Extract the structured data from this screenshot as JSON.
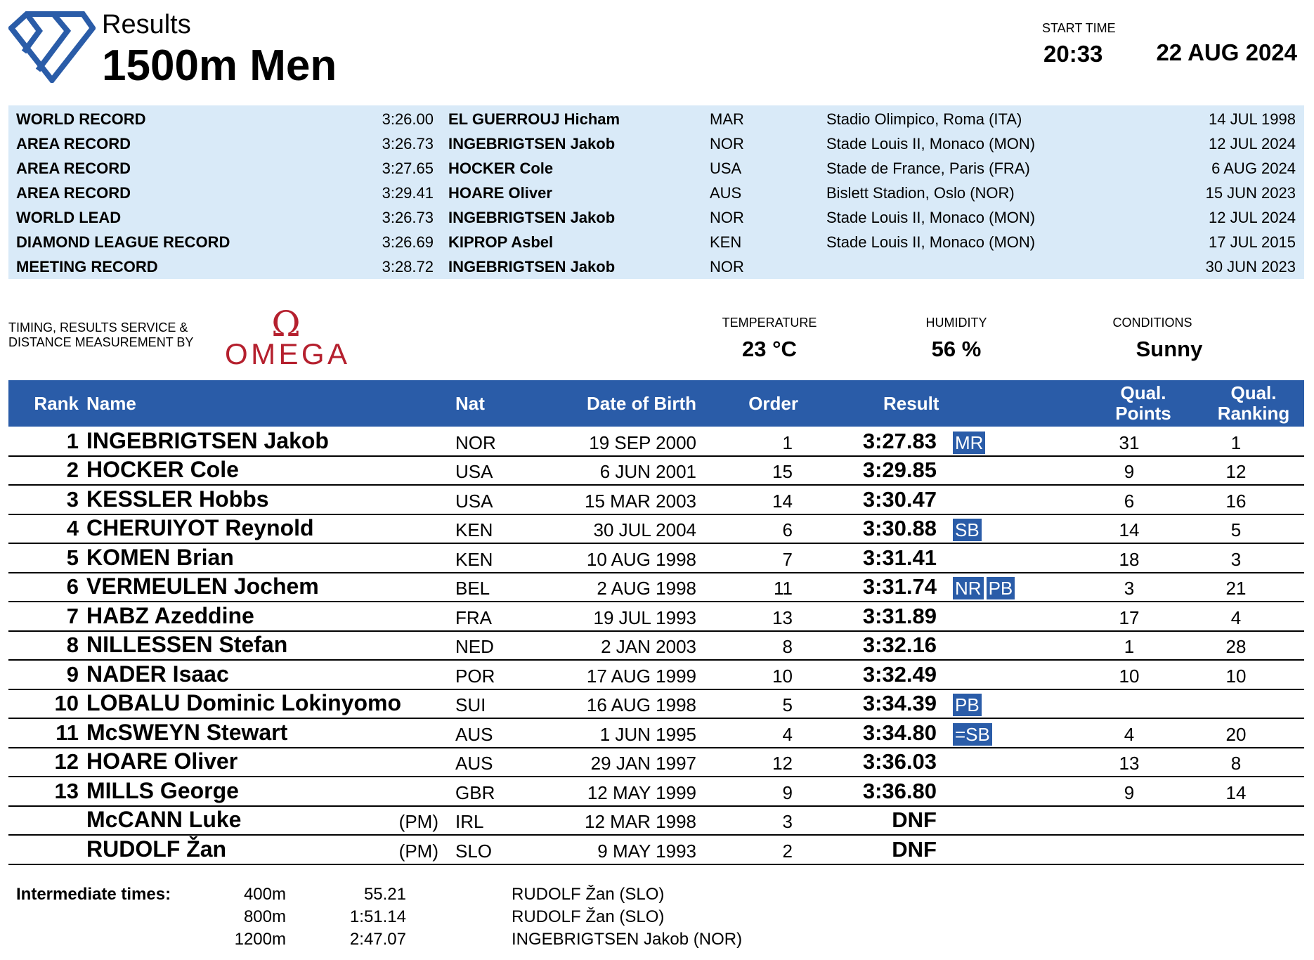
{
  "header": {
    "subtitle": "Results",
    "title": "1500m Men",
    "start_time_label": "START TIME",
    "start_time": "20:33",
    "date": "22 AUG 2024"
  },
  "records": [
    {
      "type": "WORLD RECORD",
      "time": "3:26.00",
      "name": "EL GUERROUJ Hicham",
      "nat": "MAR",
      "venue": "Stadio Olimpico, Roma (ITA)",
      "date": "14 JUL 1998"
    },
    {
      "type": "AREA RECORD",
      "time": "3:26.73",
      "name": "INGEBRIGTSEN Jakob",
      "nat": "NOR",
      "venue": "Stade Louis II, Monaco (MON)",
      "date": "12 JUL 2024"
    },
    {
      "type": "AREA RECORD",
      "time": "3:27.65",
      "name": "HOCKER Cole",
      "nat": "USA",
      "venue": "Stade de France, Paris (FRA)",
      "date": "6 AUG 2024"
    },
    {
      "type": "AREA RECORD",
      "time": "3:29.41",
      "name": "HOARE Oliver",
      "nat": "AUS",
      "venue": "Bislett Stadion, Oslo (NOR)",
      "date": "15 JUN 2023"
    },
    {
      "type": "WORLD LEAD",
      "time": "3:26.73",
      "name": "INGEBRIGTSEN Jakob",
      "nat": "NOR",
      "venue": "Stade Louis II, Monaco (MON)",
      "date": "12 JUL 2024"
    },
    {
      "type": "DIAMOND LEAGUE RECORD",
      "time": "3:26.69",
      "name": "KIPROP Asbel",
      "nat": "KEN",
      "venue": "Stade Louis II, Monaco (MON)",
      "date": "17 JUL 2015"
    },
    {
      "type": "MEETING RECORD",
      "time": "3:28.72",
      "name": "INGEBRIGTSEN Jakob",
      "nat": "NOR",
      "venue": "",
      "date": "30 JUN 2023"
    }
  ],
  "timing": {
    "line1": "TIMING, RESULTS SERVICE &",
    "line2": "DISTANCE MEASUREMENT BY",
    "logo": "OMEGA"
  },
  "conditions": {
    "temperature_label": "TEMPERATURE",
    "temperature": "23 °C",
    "humidity_label": "HUMIDITY",
    "humidity": "56 %",
    "conditions_label": "CONDITIONS",
    "conditions": "Sunny"
  },
  "columns": {
    "rank": "Rank",
    "name": "Name",
    "nat": "Nat",
    "dob": "Date of Birth",
    "order": "Order",
    "result": "Result",
    "qp1": "Qual.",
    "qp2": "Points",
    "qr1": "Qual.",
    "qr2": "Ranking"
  },
  "results": [
    {
      "rank": "1",
      "name": "INGEBRIGTSEN Jakob",
      "pm": "",
      "nat": "NOR",
      "dob": "19 SEP 2000",
      "order": "1",
      "result": "3:27.83",
      "badges": [
        "MR"
      ],
      "qp": "31",
      "qr": "1"
    },
    {
      "rank": "2",
      "name": "HOCKER Cole",
      "pm": "",
      "nat": "USA",
      "dob": "6 JUN 2001",
      "order": "15",
      "result": "3:29.85",
      "badges": [],
      "qp": "9",
      "qr": "12"
    },
    {
      "rank": "3",
      "name": "KESSLER Hobbs",
      "pm": "",
      "nat": "USA",
      "dob": "15 MAR 2003",
      "order": "14",
      "result": "3:30.47",
      "badges": [],
      "qp": "6",
      "qr": "16"
    },
    {
      "rank": "4",
      "name": "CHERUIYOT Reynold",
      "pm": "",
      "nat": "KEN",
      "dob": "30 JUL 2004",
      "order": "6",
      "result": "3:30.88",
      "badges": [
        "SB"
      ],
      "qp": "14",
      "qr": "5"
    },
    {
      "rank": "5",
      "name": "KOMEN Brian",
      "pm": "",
      "nat": "KEN",
      "dob": "10 AUG 1998",
      "order": "7",
      "result": "3:31.41",
      "badges": [],
      "qp": "18",
      "qr": "3"
    },
    {
      "rank": "6",
      "name": "VERMEULEN Jochem",
      "pm": "",
      "nat": "BEL",
      "dob": "2 AUG 1998",
      "order": "11",
      "result": "3:31.74",
      "badges": [
        "NR",
        "PB"
      ],
      "qp": "3",
      "qr": "21"
    },
    {
      "rank": "7",
      "name": "HABZ Azeddine",
      "pm": "",
      "nat": "FRA",
      "dob": "19 JUL 1993",
      "order": "13",
      "result": "3:31.89",
      "badges": [],
      "qp": "17",
      "qr": "4"
    },
    {
      "rank": "8",
      "name": "NILLESSEN Stefan",
      "pm": "",
      "nat": "NED",
      "dob": "2 JAN 2003",
      "order": "8",
      "result": "3:32.16",
      "badges": [],
      "qp": "1",
      "qr": "28"
    },
    {
      "rank": "9",
      "name": "NADER Isaac",
      "pm": "",
      "nat": "POR",
      "dob": "17 AUG 1999",
      "order": "10",
      "result": "3:32.49",
      "badges": [],
      "qp": "10",
      "qr": "10"
    },
    {
      "rank": "10",
      "name": "LOBALU Dominic Lokinyomo",
      "pm": "",
      "nat": "SUI",
      "dob": "16 AUG 1998",
      "order": "5",
      "result": "3:34.39",
      "badges": [
        "PB"
      ],
      "qp": "",
      "qr": ""
    },
    {
      "rank": "11",
      "name": "McSWEYN Stewart",
      "pm": "",
      "nat": "AUS",
      "dob": "1 JUN 1995",
      "order": "4",
      "result": "3:34.80",
      "badges": [
        "=SB"
      ],
      "qp": "4",
      "qr": "20"
    },
    {
      "rank": "12",
      "name": "HOARE Oliver",
      "pm": "",
      "nat": "AUS",
      "dob": "29 JAN 1997",
      "order": "12",
      "result": "3:36.03",
      "badges": [],
      "qp": "13",
      "qr": "8"
    },
    {
      "rank": "13",
      "name": "MILLS George",
      "pm": "",
      "nat": "GBR",
      "dob": "12 MAY 1999",
      "order": "9",
      "result": "3:36.80",
      "badges": [],
      "qp": "9",
      "qr": "14"
    },
    {
      "rank": "",
      "name": "McCANN Luke",
      "pm": "(PM)",
      "nat": "IRL",
      "dob": "12 MAR 1998",
      "order": "3",
      "result": "DNF",
      "badges": [],
      "qp": "",
      "qr": ""
    },
    {
      "rank": "",
      "name": "RUDOLF Žan",
      "pm": "(PM)",
      "nat": "SLO",
      "dob": "9 MAY 1993",
      "order": "2",
      "result": "DNF",
      "badges": [],
      "qp": "",
      "qr": ""
    }
  ],
  "intermediate": {
    "label": "Intermediate times:",
    "splits": [
      {
        "distance": "400m",
        "time": "55.21",
        "leader": "RUDOLF Žan (SLO)"
      },
      {
        "distance": "800m",
        "time": "1:51.14",
        "leader": "RUDOLF Žan (SLO)"
      },
      {
        "distance": "1200m",
        "time": "2:47.07",
        "leader": "INGEBRIGTSEN Jakob (NOR)"
      }
    ]
  },
  "colors": {
    "brand_blue": "#2a5ca8",
    "record_bg": "#d9eaf8",
    "omega_red": "#b5202e"
  }
}
